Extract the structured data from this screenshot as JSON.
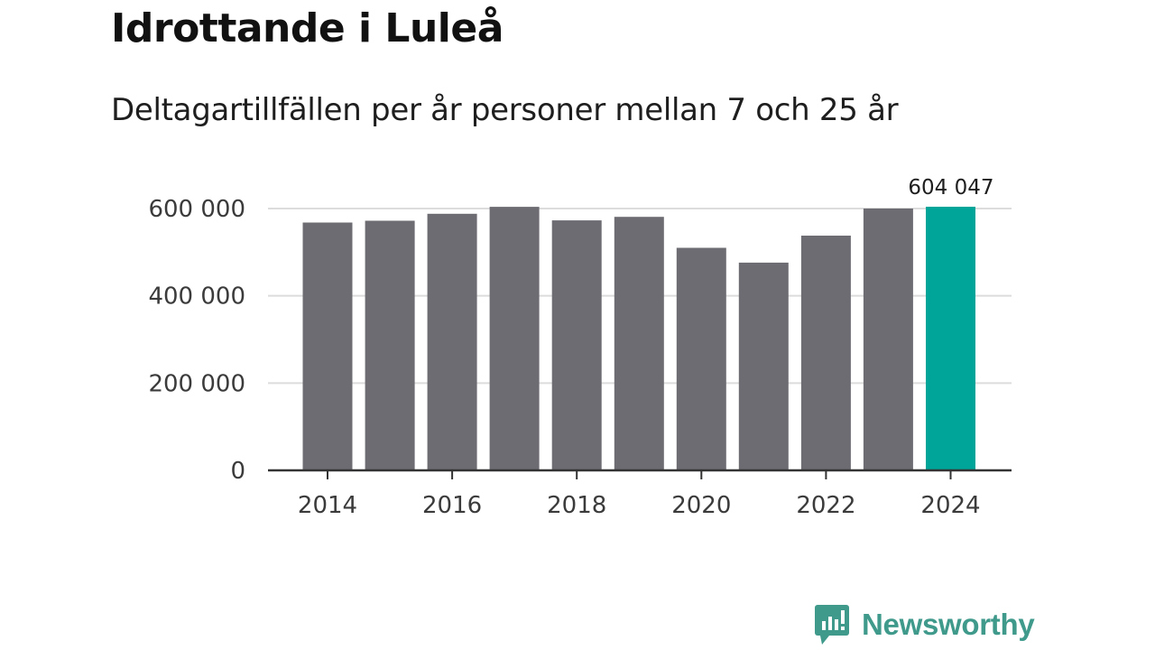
{
  "chart_data": {
    "type": "bar",
    "title": "Idrottande i Luleå",
    "subtitle": "Deltagartillfällen per år personer mellan 7 och 25 år",
    "categories": [
      "2014",
      "2015",
      "2016",
      "2017",
      "2018",
      "2019",
      "2020",
      "2021",
      "2022",
      "2023",
      "2024"
    ],
    "values": [
      568000,
      572000,
      588000,
      604000,
      573000,
      581000,
      510000,
      476000,
      538000,
      600000,
      604047
    ],
    "highlight_index": 10,
    "highlight_label": "604 047",
    "ylim": [
      0,
      620000
    ],
    "yticks": [
      0,
      200000,
      400000,
      600000
    ],
    "ytick_labels": [
      "0",
      "200 000",
      "400 000",
      "600 000"
    ],
    "xtick_labels": [
      "2014",
      "2016",
      "2018",
      "2020",
      "2022",
      "2024"
    ],
    "xlabel": "",
    "ylabel": "",
    "grid": true,
    "legend": "none",
    "colors": {
      "bar": "#6d6c72",
      "highlight": "#00a599",
      "grid": "#dcdcdc",
      "axis": "#333333"
    }
  },
  "brand": {
    "name": "Newsworthy",
    "icon": "newsworthy-logo-icon",
    "color": "#3f9a8c"
  }
}
